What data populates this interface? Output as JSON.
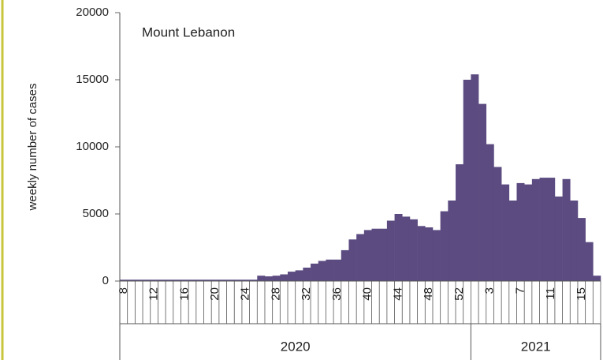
{
  "chart_data": {
    "type": "bar",
    "title": "Mount Lebanon",
    "ylabel": "weekly number of cases",
    "color": "#5b4b80",
    "ylim": [
      0,
      20000
    ],
    "yticks": [
      0,
      5000,
      10000,
      15000,
      20000
    ],
    "groups": [
      {
        "label": "2020",
        "categories": [
          "8",
          null,
          null,
          null,
          "12",
          null,
          null,
          null,
          "16",
          null,
          null,
          null,
          "20",
          null,
          null,
          null,
          "24",
          null,
          null,
          null,
          "28",
          null,
          null,
          null,
          "32",
          null,
          null,
          null,
          "36",
          null,
          null,
          null,
          "40",
          null,
          null,
          null,
          "44",
          null,
          null,
          null,
          "48",
          null,
          null,
          null,
          "52",
          null
        ],
        "values": [
          100,
          100,
          100,
          100,
          100,
          100,
          100,
          100,
          100,
          100,
          100,
          100,
          100,
          100,
          100,
          100,
          100,
          100,
          400,
          350,
          400,
          500,
          700,
          800,
          1000,
          1300,
          1500,
          1600,
          1600,
          2300,
          3100,
          3500,
          3800,
          3900,
          3900,
          4500,
          5000,
          4800,
          4600,
          4100,
          4000,
          3800,
          5200,
          6000,
          8700,
          15000
        ]
      },
      {
        "label": "2021",
        "categories": [
          null,
          null,
          "3",
          null,
          null,
          null,
          "7",
          null,
          null,
          null,
          "11",
          null,
          null,
          null,
          "15",
          null,
          null
        ],
        "values": [
          15400,
          13200,
          10200,
          8500,
          7200,
          6000,
          7300,
          7200,
          7600,
          7700,
          7700,
          6300,
          7600,
          6000,
          4700,
          2900,
          400
        ]
      }
    ]
  }
}
